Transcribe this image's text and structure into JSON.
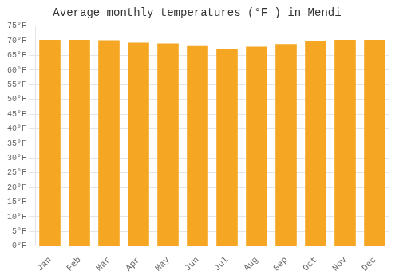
{
  "chart_data": {
    "type": "bar",
    "title": "Average monthly temperatures (°F ) in Mendi",
    "categories": [
      "Jan",
      "Feb",
      "Mar",
      "Apr",
      "May",
      "Jun",
      "Jul",
      "Aug",
      "Sep",
      "Oct",
      "Nov",
      "Dec"
    ],
    "values": [
      70.3,
      70.3,
      70.2,
      69.4,
      69.1,
      68.2,
      67.3,
      68.0,
      68.9,
      69.8,
      70.3,
      70.3
    ],
    "color": "#F5A623",
    "ylim": [
      0,
      75
    ],
    "yticks": [
      {
        "value": 0,
        "label": "0°F"
      },
      {
        "value": 5,
        "label": "5°F"
      },
      {
        "value": 10,
        "label": "10°F"
      },
      {
        "value": 15,
        "label": "15°F"
      },
      {
        "value": 20,
        "label": "20°F"
      },
      {
        "value": 25,
        "label": "25°F"
      },
      {
        "value": 30,
        "label": "30°F"
      },
      {
        "value": 35,
        "label": "35°F"
      },
      {
        "value": 40,
        "label": "40°F"
      },
      {
        "value": 45,
        "label": "45°F"
      },
      {
        "value": 50,
        "label": "50°F"
      },
      {
        "value": 55,
        "label": "55°F"
      },
      {
        "value": 60,
        "label": "60°F"
      },
      {
        "value": 65,
        "label": "65°F"
      },
      {
        "value": 70,
        "label": "70°F"
      },
      {
        "value": 75,
        "label": "75°F"
      }
    ],
    "grid": true
  }
}
